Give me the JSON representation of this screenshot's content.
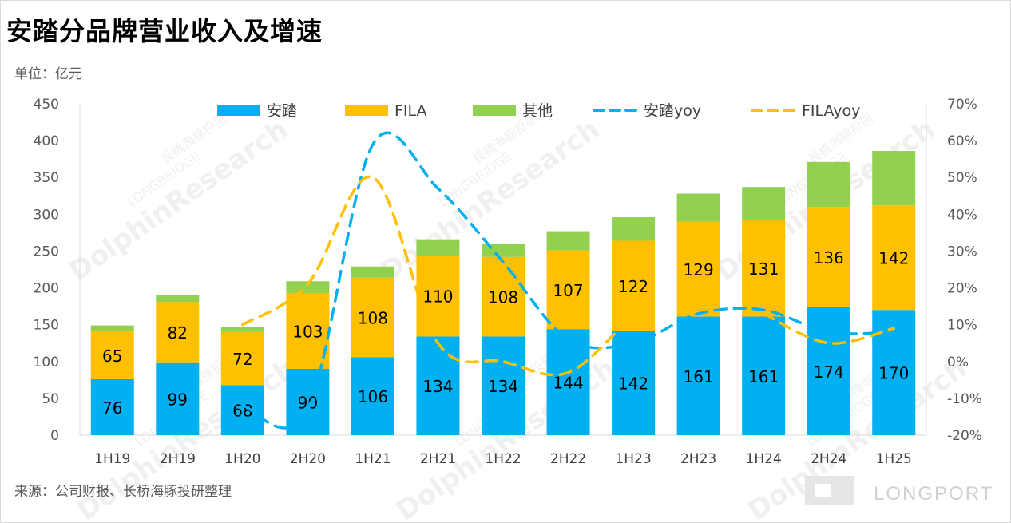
{
  "title": "安踏分品牌营业收入及增速",
  "unit_label": "单位：亿元",
  "source_label": "来源：公司财报、长桥海豚投研整理",
  "watermark": {
    "line1": "DolphinResearch",
    "line2": "LONGBRIDGE",
    "line3": "長橋海豚投研"
  },
  "brand": {
    "text": "LONGPORT"
  },
  "colors": {
    "anta": "#00b0f0",
    "fila": "#ffc000",
    "other": "#92d050",
    "anta_yoy": "#00b0f0",
    "fila_yoy": "#ffc000"
  },
  "chart_data": {
    "type": "bar",
    "stacked": true,
    "categories": [
      "1H19",
      "2H19",
      "1H20",
      "2H20",
      "1H21",
      "2H21",
      "1H22",
      "2H22",
      "1H23",
      "2H23",
      "1H24",
      "2H24",
      "1H25"
    ],
    "series": [
      {
        "name": "安踏",
        "type": "bar",
        "axis": "left",
        "values": [
          76,
          99,
          68,
          90,
          106,
          134,
          134,
          144,
          142,
          161,
          161,
          174,
          170
        ],
        "labels": [
          "76",
          "99",
          "68",
          "90",
          "106",
          "134",
          "134",
          "144",
          "142",
          "161",
          "161",
          "174",
          "170"
        ]
      },
      {
        "name": "FILA",
        "type": "bar",
        "axis": "left",
        "values": [
          65,
          82,
          72,
          103,
          108,
          110,
          108,
          107,
          122,
          129,
          131,
          136,
          142
        ],
        "labels": [
          "65",
          "82",
          "72",
          "103",
          "108",
          "110",
          "108",
          "107",
          "122",
          "129",
          "131",
          "136",
          "142"
        ]
      },
      {
        "name": "其他",
        "type": "bar",
        "axis": "left",
        "values": [
          8,
          9,
          7,
          16,
          15,
          22,
          18,
          26,
          32,
          38,
          45,
          61,
          74
        ]
      },
      {
        "name": "安踏yoy",
        "type": "line",
        "dashed": true,
        "axis": "right",
        "values": [
          null,
          null,
          -12,
          -13,
          59,
          47,
          27,
          6,
          5,
          13,
          14,
          8,
          8
        ]
      },
      {
        "name": "FILAyoy",
        "type": "line",
        "dashed": true,
        "axis": "right",
        "values": [
          null,
          null,
          10,
          21,
          50,
          5,
          0,
          -3,
          13,
          null,
          13,
          5,
          9
        ]
      }
    ],
    "y_left": {
      "min": 0,
      "max": 450,
      "step": 50,
      "ticks": [
        "0",
        "50",
        "100",
        "150",
        "200",
        "250",
        "300",
        "350",
        "400",
        "450"
      ]
    },
    "y_right": {
      "min": -20,
      "max": 70,
      "step": 10,
      "ticks": [
        "-20%",
        "-10%",
        "0%",
        "10%",
        "20%",
        "30%",
        "40%",
        "50%",
        "60%",
        "70%"
      ]
    },
    "grid": false,
    "legend_position": "top"
  }
}
